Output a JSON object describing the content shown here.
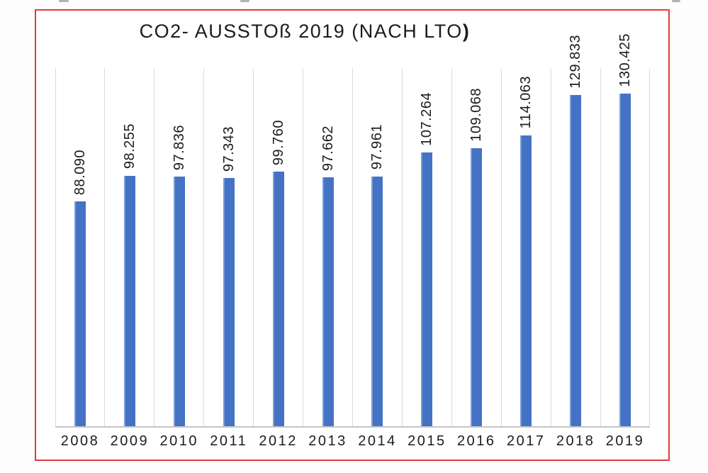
{
  "title": {
    "main": "CO2- AUSSTOß 2019 (NACH LTO",
    "suffix": ")"
  },
  "chart_data": {
    "type": "bar",
    "title": "CO2- AUSSTOß 2019 (NACH LTO)",
    "categories": [
      "2008",
      "2009",
      "2010",
      "2011",
      "2012",
      "2013",
      "2014",
      "2015",
      "2016",
      "2017",
      "2018",
      "2019"
    ],
    "values": [
      88090,
      98255,
      97836,
      97343,
      99760,
      97662,
      97961,
      107264,
      109068,
      114063,
      129833,
      130425
    ],
    "value_labels": [
      "88.090",
      "98.255",
      "97.836",
      "97.343",
      "99.760",
      "97.662",
      "97.961",
      "107.264",
      "109.068",
      "114.063",
      "129.833",
      "130.425"
    ],
    "value_label_rotation_deg": 90,
    "xlabel": "",
    "ylabel": "",
    "ylim": [
      0,
      140000
    ],
    "y_axis_labels_visible": false,
    "grid": "vertical category boundary lines only",
    "legend": "none",
    "bar_color": "#4472c4",
    "bar_highlight_color": "#7b9cd9",
    "gridline_color": "#d9d9d9",
    "axis_line_color": "#c6c6c6",
    "frame_border_color": "#e23b3b",
    "text_color": "#1c1c1c"
  }
}
